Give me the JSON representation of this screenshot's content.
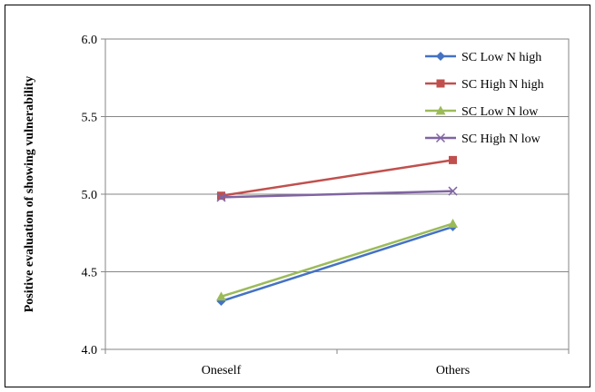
{
  "chart_data": {
    "type": "line",
    "title": "",
    "xlabel": "",
    "ylabel": "Positive evaluation of showing vulnerability",
    "categories": [
      "Oneself",
      "Others"
    ],
    "ylim": [
      4.0,
      6.0
    ],
    "yticks": [
      "4.0",
      "4.5",
      "5.0",
      "5.5",
      "6.0"
    ],
    "ytick_values": [
      4.0,
      4.5,
      5.0,
      5.5,
      6.0
    ],
    "grid": true,
    "legend_position": "top-right",
    "series": [
      {
        "name": "SC Low N high",
        "values": [
          4.31,
          4.79
        ],
        "color": "#4472C4",
        "marker": "diamond"
      },
      {
        "name": "SC High N high",
        "values": [
          4.99,
          5.22
        ],
        "color": "#C0504D",
        "marker": "square"
      },
      {
        "name": "SC Low N low",
        "values": [
          4.34,
          4.81
        ],
        "color": "#9BBB59",
        "marker": "triangle"
      },
      {
        "name": "SC High N low",
        "values": [
          4.98,
          5.02
        ],
        "color": "#8064A2",
        "marker": "x"
      }
    ]
  }
}
